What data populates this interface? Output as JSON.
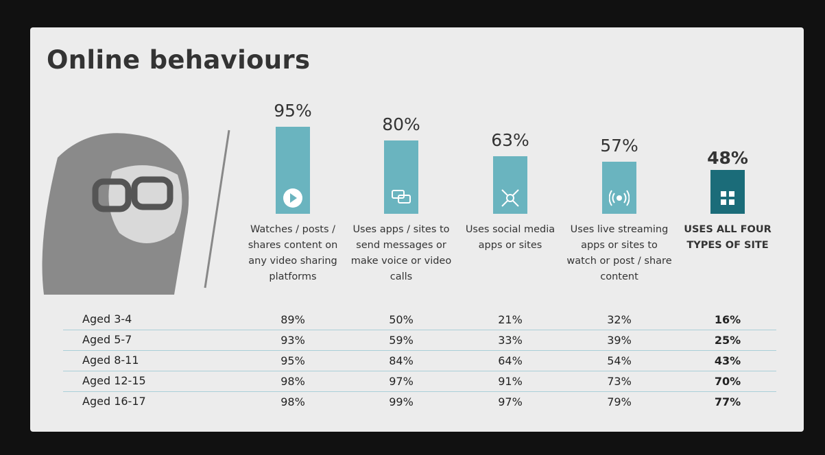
{
  "chart_data": {
    "type": "bar",
    "title": "Online behaviours",
    "categories": [
      "Watches / posts / shares content on any video sharing platforms",
      "Uses apps / sites to send messages or make voice or video calls",
      "Uses social media apps or sites",
      "Uses live streaming apps or sites to watch or post / share content",
      "USES ALL FOUR TYPES OF SITE"
    ],
    "values": [
      95,
      80,
      63,
      57,
      48
    ],
    "value_labels": [
      "95%",
      "80%",
      "63%",
      "57%",
      "48%"
    ],
    "colors": [
      "#6ab4bf",
      "#6ab4bf",
      "#6ab4bf",
      "#6ab4bf",
      "#1b6c79"
    ]
  },
  "table": {
    "rows": [
      [
        "Aged 3-4",
        "89%",
        "50%",
        "21%",
        "32%",
        "16%"
      ],
      [
        "Aged 5-7",
        "93%",
        "59%",
        "33%",
        "39%",
        "25%"
      ],
      [
        "Aged 8-11",
        "95%",
        "84%",
        "64%",
        "54%",
        "43%"
      ],
      [
        "Aged 12-15",
        "98%",
        "97%",
        "91%",
        "73%",
        "70%"
      ],
      [
        "Aged 16-17",
        "98%",
        "99%",
        "97%",
        "79%",
        "77%"
      ]
    ]
  }
}
